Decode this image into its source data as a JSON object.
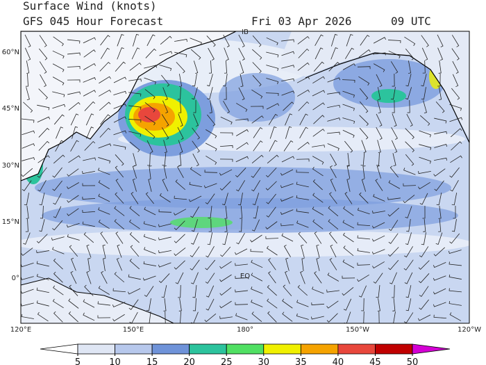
{
  "header": {
    "title": "Surface Wind (knots)",
    "subtitle": "GFS 045 Hour Forecast",
    "valid_date": "Fri 03 Apr 2026",
    "valid_time": "09 UTC"
  },
  "map": {
    "lat_labels": [
      "60°N",
      "45°N",
      "30°N",
      "15°N",
      "0°"
    ],
    "lon_labels": [
      "120°E",
      "150°E",
      "180°",
      "150°W",
      "120°W"
    ],
    "annotations": [
      "IB",
      "EQ"
    ]
  },
  "colorbar": {
    "ticks": [
      5,
      10,
      15,
      20,
      25,
      30,
      35,
      40,
      45,
      50
    ],
    "colors": [
      "#ffffff",
      "#dfe6f4",
      "#b7c8ec",
      "#6f93d9",
      "#2cc39d",
      "#50e063",
      "#f0f000",
      "#f5a300",
      "#e8473c",
      "#c00000",
      "#d400d4"
    ]
  }
}
